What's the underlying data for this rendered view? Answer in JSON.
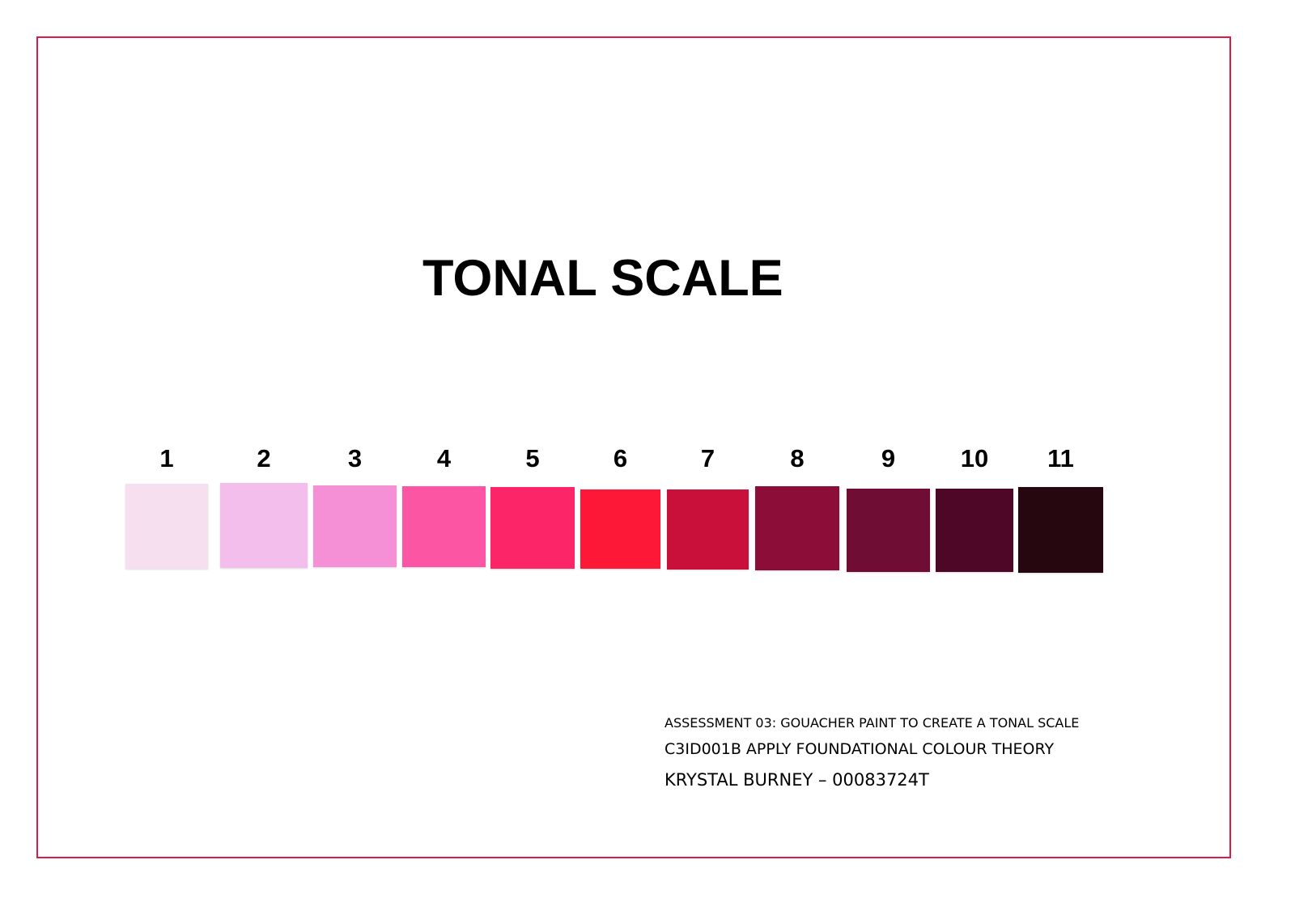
{
  "title": "TONAL SCALE",
  "border_color": "#d81b4a",
  "swatches": [
    {
      "label": "1",
      "color": "#f6dfee"
    },
    {
      "label": "2",
      "color": "#f3bdec"
    },
    {
      "label": "3",
      "color": "#f58fd6"
    },
    {
      "label": "4",
      "color": "#fb55a4"
    },
    {
      "label": "5",
      "color": "#fc2567"
    },
    {
      "label": "6",
      "color": "#fd1838"
    },
    {
      "label": "7",
      "color": "#c8103b"
    },
    {
      "label": "8",
      "color": "#8c0d38"
    },
    {
      "label": "9",
      "color": "#6f0d34"
    },
    {
      "label": "10",
      "color": "#4e0727"
    },
    {
      "label": "11",
      "color": "#26070f"
    }
  ],
  "info": {
    "assessment": "ASSESSMENT 03: GOUACHER PAINT TO CREATE A TONAL SCALE",
    "unit": "C3ID001B APPLY FOUNDATIONAL COLOUR THEORY",
    "student": "KRYSTAL BURNEY – 00083724T"
  }
}
